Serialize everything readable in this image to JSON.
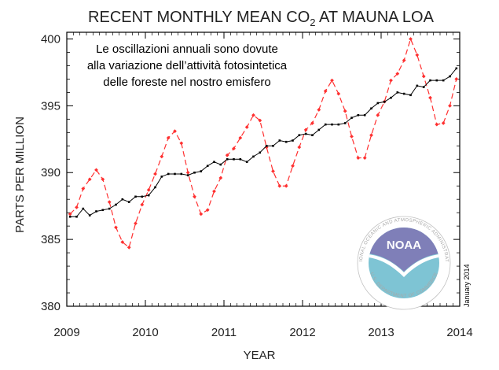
{
  "chart_data": {
    "type": "line",
    "title": {
      "prefix": "RECENT MONTHLY MEAN CO",
      "subscript": "2",
      "suffix": " AT MAUNA LOA"
    },
    "xlabel": "YEAR",
    "ylabel": "PARTS PER MILLION",
    "xlim": [
      2009.0,
      2014.0
    ],
    "ylim": [
      380,
      400.5
    ],
    "xticks": [
      2009,
      2010,
      2011,
      2012,
      2013,
      2014
    ],
    "yticks": [
      380,
      385,
      390,
      395,
      400
    ],
    "x": [
      2009.042,
      2009.125,
      2009.208,
      2009.292,
      2009.375,
      2009.458,
      2009.542,
      2009.625,
      2009.708,
      2009.792,
      2009.875,
      2009.958,
      2010.042,
      2010.125,
      2010.208,
      2010.292,
      2010.375,
      2010.458,
      2010.542,
      2010.625,
      2010.708,
      2010.792,
      2010.875,
      2010.958,
      2011.042,
      2011.125,
      2011.208,
      2011.292,
      2011.375,
      2011.458,
      2011.542,
      2011.625,
      2011.708,
      2011.792,
      2011.875,
      2011.958,
      2012.042,
      2012.125,
      2012.208,
      2012.292,
      2012.375,
      2012.458,
      2012.542,
      2012.625,
      2012.708,
      2012.792,
      2012.875,
      2012.958,
      2013.042,
      2013.125,
      2013.208,
      2013.292,
      2013.375,
      2013.458,
      2013.542,
      2013.625,
      2013.708,
      2013.792,
      2013.875,
      2013.958
    ],
    "series": [
      {
        "color": "#ff3030",
        "dash": "dashed",
        "marker": "diamond",
        "values": [
          386.9,
          387.4,
          388.8,
          389.5,
          390.2,
          389.5,
          387.8,
          385.9,
          384.8,
          384.4,
          386.2,
          387.6,
          388.7,
          389.9,
          391.2,
          392.6,
          393.1,
          392.2,
          390.0,
          388.2,
          386.9,
          387.2,
          388.6,
          389.6,
          391.3,
          391.8,
          392.6,
          393.4,
          394.3,
          393.9,
          391.9,
          390.1,
          389.0,
          389.0,
          390.5,
          391.9,
          393.2,
          393.7,
          394.7,
          396.1,
          396.9,
          395.9,
          394.6,
          392.7,
          391.1,
          391.1,
          392.8,
          394.3,
          395.3,
          396.9,
          397.4,
          398.4,
          400.0,
          398.8,
          397.2,
          395.6,
          393.6,
          393.7,
          395.0,
          397.0
        ]
      },
      {
        "color": "#000000",
        "dash": "solid",
        "marker": "square",
        "values": [
          386.7,
          386.7,
          387.3,
          386.8,
          387.1,
          387.2,
          387.3,
          387.6,
          388.0,
          387.8,
          388.2,
          388.2,
          388.3,
          388.9,
          389.7,
          389.9,
          389.9,
          389.9,
          389.8,
          390.0,
          390.1,
          390.5,
          390.8,
          390.6,
          391.0,
          391.0,
          391.0,
          390.8,
          391.2,
          391.5,
          392.0,
          392.0,
          392.4,
          392.3,
          392.4,
          392.8,
          392.9,
          392.8,
          393.2,
          393.6,
          393.6,
          393.6,
          393.7,
          394.1,
          394.3,
          394.3,
          394.8,
          395.2,
          395.3,
          395.6,
          396.0,
          395.9,
          395.8,
          396.5,
          396.4,
          396.9,
          396.9,
          396.9,
          397.2,
          397.8
        ]
      }
    ],
    "annotation": {
      "lines": [
        "Le oscillazioni annuali sono dovute",
        "alla variazione dell’attività fotosintetica",
        "delle foreste nel nostro emisfero"
      ]
    },
    "logo": {
      "center_text": "NOAA",
      "ring_text": "NATIONAL OCEANIC AND ATMOSPHERIC ADMINISTRATION",
      "bottom_text": "U.S. DEPARTMENT OF COMMERCE",
      "color_top": "#7f7fb8",
      "color_bottom": "#7ec4d4"
    },
    "credit": "January 2014"
  }
}
